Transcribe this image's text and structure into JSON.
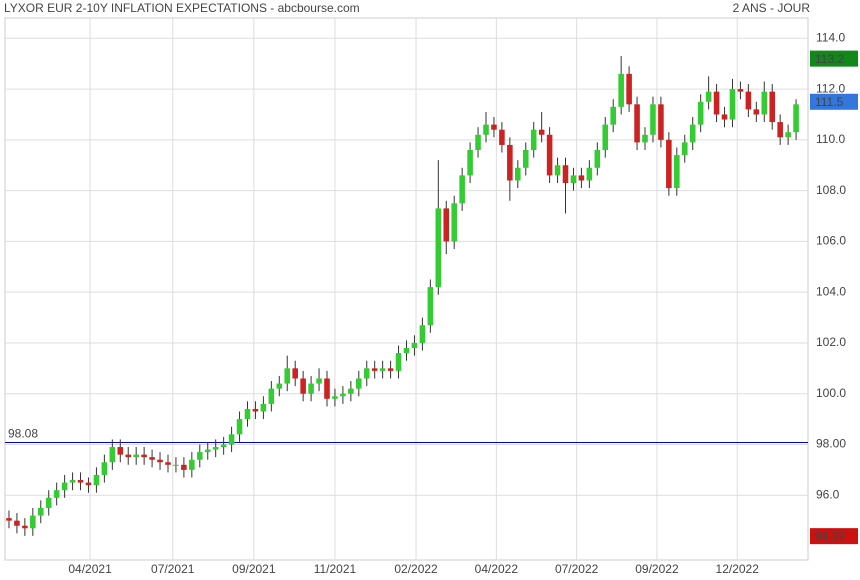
{
  "chart_data": {
    "type": "candlestick",
    "title": "LYXOR EUR 2-10Y INFLATION EXPECTATIONS - abcbourse.com",
    "subtitle": "2 ANS - JOUR",
    "up_color": "#33cc33",
    "down_color": "#cc2222",
    "grid": true,
    "xlim": [
      -0.5,
      100.5
    ],
    "xticks": [
      {
        "value": 10.2,
        "label": "04/2021"
      },
      {
        "value": 20.6,
        "label": "07/2021"
      },
      {
        "value": 30.8,
        "label": "09/2021"
      },
      {
        "value": 41.0,
        "label": "11/2021"
      },
      {
        "value": 51.2,
        "label": "02/2022"
      },
      {
        "value": 61.3,
        "label": "04/2022"
      },
      {
        "value": 71.4,
        "label": "07/2022"
      },
      {
        "value": 81.5,
        "label": "09/2022"
      },
      {
        "value": 91.6,
        "label": "12/2022"
      }
    ],
    "ylim": [
      93.45,
      114.8
    ],
    "yticks": [
      {
        "value": 96,
        "label": "96.0"
      },
      {
        "value": 98,
        "label": "98.00"
      },
      {
        "value": 100,
        "label": "100.0"
      },
      {
        "value": 102,
        "label": "102.0"
      },
      {
        "value": 104,
        "label": "104.0"
      },
      {
        "value": 106,
        "label": "106.0"
      },
      {
        "value": 108,
        "label": "108.0"
      },
      {
        "value": 110,
        "label": "110.0"
      },
      {
        "value": 112,
        "label": "112.0"
      },
      {
        "value": 114,
        "label": "114.0"
      }
    ],
    "reference_line": {
      "value": 98.08,
      "color": "#0000cc"
    },
    "markers": [
      {
        "value": 113.2,
        "color": "#11881a"
      },
      {
        "value": 111.5,
        "color": "#3377dd"
      },
      {
        "value": 94.39,
        "color": "#cc1111"
      }
    ],
    "open": [
      95.1,
      95.0,
      94.8,
      94.7,
      95.2,
      95.5,
      95.9,
      96.2,
      96.5,
      96.6,
      96.5,
      96.4,
      96.8,
      97.3,
      97.9,
      97.6,
      97.5,
      97.6,
      97.5,
      97.4,
      97.3,
      97.2,
      97.2,
      97.0,
      97.4,
      97.7,
      97.8,
      97.9,
      98.0,
      98.4,
      99.0,
      99.4,
      99.3,
      99.6,
      100.2,
      100.4,
      101.0,
      100.6,
      100.0,
      100.4,
      100.6,
      99.8,
      99.9,
      100.0,
      100.2,
      100.6,
      101.0,
      100.9,
      101.0,
      100.9,
      101.6,
      101.8,
      102.0,
      102.7,
      104.2,
      107.3,
      106.0,
      107.5,
      108.6,
      109.6,
      110.2,
      110.6,
      110.4,
      109.8,
      108.4,
      108.9,
      109.6,
      110.4,
      110.2,
      108.6,
      109.0,
      108.3,
      108.6,
      108.4,
      108.9,
      109.6,
      110.6,
      111.3,
      112.6,
      111.4,
      109.9,
      110.2,
      111.4,
      110.0,
      108.1,
      109.4,
      109.9,
      110.6,
      111.5,
      111.9,
      111.0,
      110.8,
      112.0,
      111.9,
      111.2,
      111.0,
      111.9,
      110.7,
      110.1,
      110.3
    ],
    "high": [
      95.4,
      95.3,
      95.1,
      95.5,
      95.8,
      96.2,
      96.5,
      96.8,
      96.9,
      96.9,
      96.7,
      97.1,
      97.6,
      98.2,
      98.2,
      97.9,
      97.9,
      97.9,
      97.8,
      97.7,
      97.6,
      97.5,
      97.5,
      97.7,
      98.0,
      98.1,
      98.2,
      98.3,
      98.7,
      99.3,
      99.7,
      99.7,
      99.9,
      100.5,
      100.7,
      101.5,
      101.3,
      100.9,
      100.7,
      101.0,
      100.9,
      100.2,
      100.3,
      100.5,
      100.9,
      101.3,
      101.3,
      101.3,
      101.3,
      101.9,
      102.1,
      102.3,
      103.0,
      104.5,
      109.2,
      107.6,
      107.8,
      108.9,
      109.9,
      110.5,
      111.1,
      110.9,
      110.7,
      110.1,
      109.2,
      109.9,
      110.7,
      111.1,
      110.5,
      109.3,
      109.3,
      108.9,
      108.9,
      109.2,
      109.9,
      110.9,
      111.6,
      113.3,
      112.9,
      111.7,
      110.5,
      111.7,
      111.7,
      110.3,
      109.7,
      110.2,
      110.9,
      111.8,
      112.5,
      112.2,
      111.3,
      112.4,
      112.3,
      112.2,
      111.5,
      112.3,
      112.2,
      111.0,
      110.6,
      111.6
    ],
    "low": [
      94.7,
      94.5,
      94.4,
      94.4,
      94.9,
      95.2,
      95.6,
      95.9,
      96.2,
      96.2,
      96.1,
      96.1,
      96.5,
      97.0,
      97.3,
      97.2,
      97.2,
      97.2,
      97.1,
      97.0,
      96.9,
      96.9,
      96.7,
      96.7,
      97.1,
      97.4,
      97.5,
      97.6,
      97.7,
      98.1,
      98.7,
      99.0,
      99.0,
      99.3,
      99.9,
      100.1,
      100.3,
      99.7,
      99.7,
      100.1,
      99.5,
      99.5,
      99.6,
      99.7,
      99.9,
      100.3,
      100.6,
      100.6,
      100.6,
      100.6,
      101.3,
      101.5,
      101.7,
      102.4,
      103.9,
      105.5,
      105.7,
      107.2,
      108.3,
      109.3,
      109.9,
      110.1,
      109.5,
      107.6,
      108.1,
      108.6,
      109.3,
      109.9,
      108.3,
      108.3,
      107.1,
      108.0,
      108.1,
      108.1,
      108.6,
      109.3,
      110.3,
      111.0,
      111.1,
      109.6,
      109.6,
      109.9,
      109.7,
      107.8,
      107.8,
      109.1,
      109.6,
      110.3,
      111.2,
      110.7,
      110.5,
      110.5,
      111.6,
      110.9,
      110.7,
      110.7,
      110.4,
      109.8,
      109.8,
      110.0
    ],
    "close": [
      95.0,
      94.8,
      94.7,
      95.2,
      95.5,
      95.9,
      96.2,
      96.5,
      96.6,
      96.5,
      96.4,
      96.8,
      97.3,
      97.9,
      97.6,
      97.5,
      97.6,
      97.5,
      97.4,
      97.3,
      97.2,
      97.2,
      97.0,
      97.4,
      97.7,
      97.8,
      97.9,
      98.0,
      98.4,
      99.0,
      99.4,
      99.3,
      99.6,
      100.2,
      100.4,
      101.0,
      100.6,
      100.0,
      100.4,
      100.6,
      99.8,
      99.9,
      100.0,
      100.2,
      100.6,
      101.0,
      100.9,
      101.0,
      100.9,
      101.6,
      101.8,
      102.0,
      102.7,
      104.2,
      107.3,
      106.0,
      107.5,
      108.6,
      109.6,
      110.2,
      110.6,
      110.4,
      109.8,
      108.4,
      108.9,
      109.6,
      110.4,
      110.2,
      108.6,
      109.0,
      108.3,
      108.6,
      108.4,
      108.9,
      109.6,
      110.6,
      111.3,
      112.6,
      111.4,
      109.9,
      110.2,
      111.4,
      110.0,
      108.1,
      109.4,
      109.9,
      110.6,
      111.5,
      111.9,
      111.0,
      110.8,
      112.0,
      111.9,
      111.2,
      111.0,
      111.9,
      110.7,
      110.1,
      110.3,
      111.4
    ]
  }
}
